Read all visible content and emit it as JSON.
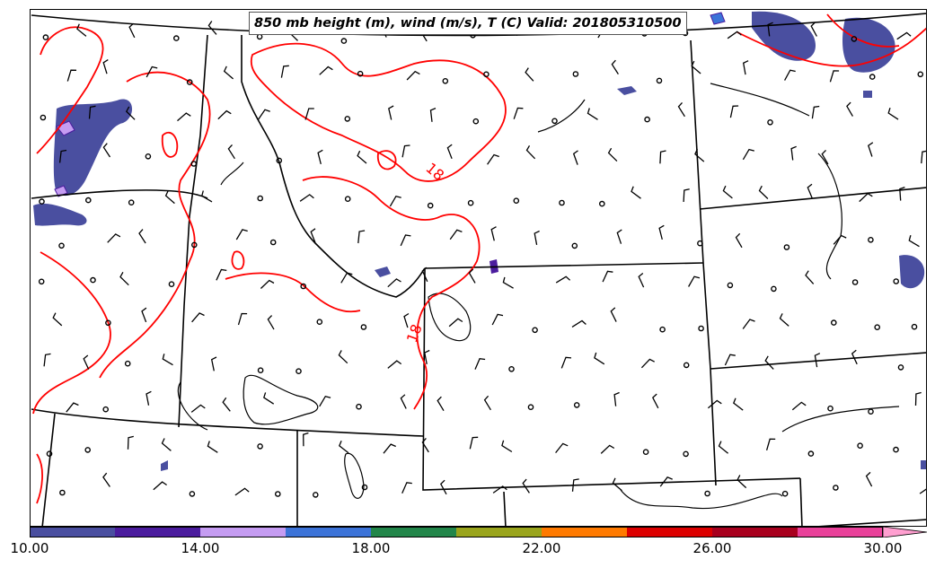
{
  "title": "850 mb height (m), wind (m/s), T (C) Valid: 201805310500",
  "colorbar": {
    "tick_labels": [
      "10.00",
      "14.00",
      "18.00",
      "22.00",
      "26.00",
      "30.00"
    ],
    "colors": [
      "#4a4fa0",
      "#4b1c9e",
      "#c59cf2",
      "#3c73d8",
      "#22864a",
      "#9aa51c",
      "#ff7a00",
      "#dd0000",
      "#a8001e",
      "#e9419a",
      "#ff9fd0"
    ]
  },
  "contour_labels": [
    "18",
    "18"
  ],
  "colors": {
    "temperature_contour": "#ff0000",
    "boundaries": "#000000",
    "shading": "#4a4fa0"
  }
}
